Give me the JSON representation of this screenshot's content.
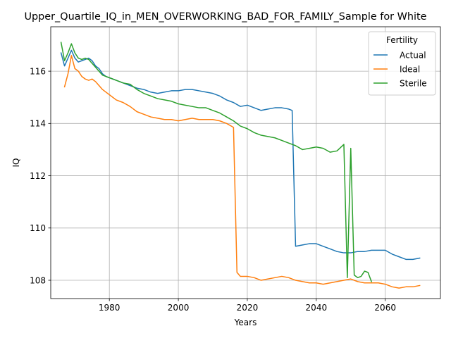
{
  "chart_data": {
    "type": "line",
    "title": "Upper_Quartile_IQ_in_MEN_OVERWORKING_BAD_FOR_FAMILY_Sample for White",
    "xlabel": "Years",
    "ylabel": "IQ",
    "xlim": [
      1963,
      2076
    ],
    "ylim": [
      107.3,
      117.7
    ],
    "x_ticks": [
      1980,
      2000,
      2020,
      2040,
      2060
    ],
    "x_tick_labels": [
      "1980",
      "2000",
      "2020",
      "2040",
      "2060"
    ],
    "y_ticks": [
      108,
      110,
      112,
      114,
      116
    ],
    "y_tick_labels": [
      "108",
      "110",
      "112",
      "114",
      "116"
    ],
    "grid": true,
    "legend": {
      "title": "Fertility",
      "position": "top-right"
    },
    "series": [
      {
        "name": "Actual",
        "color": "#1f77b4",
        "x": [
          1966,
          1967,
          1968,
          1969,
          1970,
          1971,
          1972,
          1973,
          1974,
          1975,
          1976,
          1977,
          1978,
          1979,
          1980,
          1982,
          1984,
          1986,
          1988,
          1990,
          1992,
          1994,
          1996,
          1998,
          2000,
          2002,
          2004,
          2006,
          2008,
          2010,
          2012,
          2014,
          2016,
          2018,
          2020,
          2022,
          2024,
          2026,
          2028,
          2030,
          2032,
          2033,
          2034,
          2036,
          2038,
          2040,
          2042,
          2044,
          2046,
          2048,
          2050,
          2052,
          2054,
          2056,
          2058,
          2060,
          2062,
          2064,
          2066,
          2068,
          2070
        ],
        "y": [
          116.7,
          116.2,
          116.5,
          116.8,
          116.5,
          116.35,
          116.4,
          116.45,
          116.5,
          116.4,
          116.2,
          116.1,
          115.9,
          115.8,
          115.75,
          115.65,
          115.55,
          115.45,
          115.35,
          115.3,
          115.2,
          115.15,
          115.2,
          115.25,
          115.25,
          115.3,
          115.3,
          115.25,
          115.2,
          115.15,
          115.05,
          114.9,
          114.8,
          114.65,
          114.7,
          114.6,
          114.5,
          114.55,
          114.6,
          114.6,
          114.55,
          114.5,
          109.3,
          109.35,
          109.4,
          109.4,
          109.3,
          109.2,
          109.1,
          109.05,
          109.05,
          109.1,
          109.1,
          109.15,
          109.15,
          109.15,
          109.0,
          108.9,
          108.8,
          108.8,
          108.85
        ]
      },
      {
        "name": "Ideal",
        "color": "#ff7f0e",
        "x": [
          1967,
          1968,
          1969,
          1970,
          1971,
          1972,
          1973,
          1974,
          1975,
          1976,
          1977,
          1978,
          1979,
          1980,
          1982,
          1984,
          1986,
          1988,
          1990,
          1992,
          1994,
          1996,
          1998,
          2000,
          2002,
          2004,
          2006,
          2008,
          2010,
          2012,
          2014,
          2016,
          2017,
          2018,
          2020,
          2022,
          2024,
          2026,
          2028,
          2030,
          2032,
          2034,
          2036,
          2038,
          2040,
          2042,
          2044,
          2046,
          2048,
          2050,
          2052,
          2054,
          2056,
          2058,
          2060,
          2062,
          2064,
          2066,
          2068,
          2070
        ],
        "y": [
          115.4,
          115.9,
          116.6,
          116.1,
          116.0,
          115.8,
          115.7,
          115.65,
          115.7,
          115.6,
          115.45,
          115.3,
          115.2,
          115.1,
          114.9,
          114.8,
          114.65,
          114.45,
          114.35,
          114.25,
          114.2,
          114.15,
          114.15,
          114.1,
          114.15,
          114.2,
          114.15,
          114.15,
          114.15,
          114.1,
          114.0,
          113.85,
          108.3,
          108.15,
          108.15,
          108.1,
          108.0,
          108.05,
          108.1,
          108.15,
          108.1,
          108.0,
          107.95,
          107.9,
          107.9,
          107.85,
          107.9,
          107.95,
          108.0,
          108.05,
          107.95,
          107.9,
          107.9,
          107.9,
          107.85,
          107.75,
          107.7,
          107.75,
          107.75,
          107.8
        ]
      },
      {
        "name": "Sterile",
        "color": "#2ca02c",
        "x": [
          1966,
          1967,
          1968,
          1969,
          1970,
          1971,
          1972,
          1973,
          1974,
          1975,
          1976,
          1977,
          1978,
          1979,
          1980,
          1982,
          1984,
          1986,
          1988,
          1990,
          1992,
          1994,
          1996,
          1998,
          2000,
          2002,
          2004,
          2006,
          2008,
          2010,
          2012,
          2014,
          2016,
          2018,
          2020,
          2022,
          2024,
          2026,
          2028,
          2030,
          2032,
          2034,
          2036,
          2038,
          2040,
          2042,
          2044,
          2046,
          2048,
          2049,
          2050,
          2051,
          2052,
          2053,
          2054,
          2055,
          2056
        ],
        "y": [
          117.1,
          116.4,
          116.7,
          117.05,
          116.7,
          116.5,
          116.45,
          116.5,
          116.45,
          116.3,
          116.15,
          116.0,
          115.85,
          115.8,
          115.75,
          115.65,
          115.55,
          115.5,
          115.3,
          115.15,
          115.05,
          114.95,
          114.9,
          114.85,
          114.75,
          114.7,
          114.65,
          114.6,
          114.6,
          114.5,
          114.4,
          114.25,
          114.1,
          113.9,
          113.8,
          113.65,
          113.55,
          113.5,
          113.45,
          113.35,
          113.25,
          113.15,
          113.0,
          113.05,
          113.1,
          113.05,
          112.9,
          112.95,
          113.2,
          108.1,
          113.05,
          108.2,
          108.1,
          108.15,
          108.35,
          108.3,
          107.95
        ]
      }
    ]
  }
}
